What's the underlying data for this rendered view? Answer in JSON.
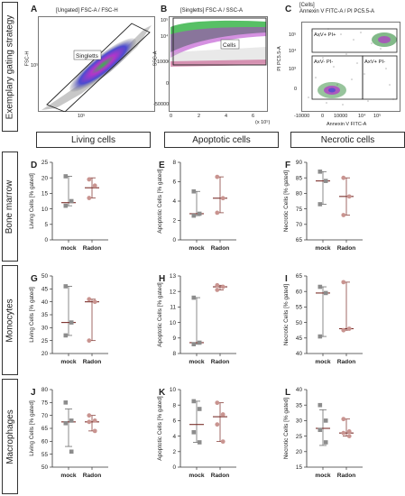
{
  "section_labels": {
    "gating": "Exemplary gating strategy",
    "bone_marrow": "Bone marrow",
    "monocytes": "Monocytes",
    "macrophages": "Macrophages"
  },
  "column_headers": {
    "living": "Living cells",
    "apoptotic": "Apoptotic cells",
    "necrotic": "Necrotic cells"
  },
  "flow_panels": {
    "A": {
      "letter": "A",
      "title": "[Ungated] FSC-A / FSC-H",
      "xlabel": "",
      "ylabel": "FSC-H",
      "gate": "Singletts",
      "xtick": "10⁵",
      "ytick": "10⁵"
    },
    "B": {
      "letter": "B",
      "title": "[Singletts] FSC-A / SSC-A",
      "ylabel": "SSC-A",
      "gate": "Cells",
      "xunit": "(x 10⁵)",
      "yticks": [
        "10⁵",
        "10⁴",
        "10000",
        "0",
        "-50000"
      ],
      "xticks": [
        "0",
        "2",
        "4",
        "6"
      ]
    },
    "C": {
      "letter": "C",
      "title_line1": "[Cells]",
      "title_line2": "Annexin V FITC-A / PI PC5.5-A",
      "ylabel": "PI PC5.5-A",
      "xlabel": "Annexin V FITC-A",
      "q_ur": "AxV+ PI+",
      "q_ll": "AxV- PI-",
      "q_lr": "AxV+ PI-",
      "yticks": [
        "10⁵",
        "10⁴",
        "10³",
        "0"
      ],
      "xticks": [
        "-10000",
        "0",
        "10000",
        "10⁴",
        "10⁵"
      ]
    }
  },
  "chart_data": [
    {
      "id": "D",
      "letter": "D",
      "type": "scatter",
      "ylabel": "Living Cells [% gated]",
      "categories": [
        "mock",
        "Radon"
      ],
      "ylim": [
        0,
        25
      ],
      "yticks": [
        0,
        5,
        10,
        15,
        20,
        25
      ],
      "series": [
        {
          "values": [
            [
              20.5,
              12.5,
              11.0
            ],
            [
              19.5,
              17.5,
              13.5
            ]
          ]
        }
      ],
      "summary": [
        [
          20.5,
          12.0,
          11.0
        ],
        [
          20.0,
          16.8,
          13.5
        ]
      ]
    },
    {
      "id": "E",
      "letter": "E",
      "type": "scatter",
      "ylabel": "Apoptotic Cells [% gated]",
      "categories": [
        "mock",
        "Radon"
      ],
      "ylim": [
        0,
        8
      ],
      "yticks": [
        0,
        2,
        4,
        6,
        8
      ],
      "series": [
        {
          "values": [
            [
              5.0,
              2.7,
              2.5
            ],
            [
              6.5,
              4.3,
              2.8
            ]
          ]
        }
      ],
      "summary": [
        [
          5.0,
          2.7,
          2.5
        ],
        [
          6.5,
          4.3,
          2.8
        ]
      ]
    },
    {
      "id": "F",
      "letter": "F",
      "type": "scatter",
      "ylabel": "Necrotic Cells [% gated]",
      "categories": [
        "mock",
        "Radon"
      ],
      "ylim": [
        65,
        90
      ],
      "yticks": [
        65,
        70,
        75,
        80,
        85,
        90
      ],
      "series": [
        {
          "values": [
            [
              87.0,
              84.0,
              76.5
            ],
            [
              85.0,
              79.0,
              73.0
            ]
          ]
        }
      ],
      "summary": [
        [
          87.0,
          84.0,
          76.5
        ],
        [
          85.0,
          79.0,
          73.0
        ]
      ]
    },
    {
      "id": "G",
      "letter": "G",
      "type": "scatter",
      "ylabel": "Living Cells [% gated]",
      "categories": [
        "mock",
        "Radon"
      ],
      "ylim": [
        20,
        50
      ],
      "yticks": [
        20,
        25,
        30,
        35,
        40,
        45,
        50
      ],
      "series": [
        {
          "values": [
            [
              46.0,
              32.0,
              27.0
            ],
            [
              41.0,
              40.0,
              25.0
            ]
          ]
        }
      ],
      "summary": [
        [
          46.0,
          32.0,
          27.0
        ],
        [
          41.0,
          40.0,
          25.0
        ]
      ]
    },
    {
      "id": "H",
      "letter": "H",
      "type": "scatter",
      "ylabel": "Apoptotic Cells [% gated]",
      "categories": [
        "mock",
        "Radon"
      ],
      "ylim": [
        8,
        13
      ],
      "yticks": [
        8,
        9,
        10,
        11,
        12,
        13
      ],
      "series": [
        {
          "values": [
            [
              11.6,
              8.7,
              8.6
            ],
            [
              12.4,
              12.3,
              12.1
            ]
          ]
        }
      ],
      "summary": [
        [
          11.6,
          8.7,
          8.6
        ],
        [
          12.4,
          12.3,
          12.1
        ]
      ]
    },
    {
      "id": "I",
      "letter": "I",
      "type": "scatter",
      "ylabel": "Necrotic Cells [% gated]",
      "categories": [
        "mock",
        "Radon"
      ],
      "ylim": [
        40,
        65
      ],
      "yticks": [
        40,
        45,
        50,
        55,
        60,
        65
      ],
      "series": [
        {
          "values": [
            [
              61.5,
              59.5,
              45.5
            ],
            [
              63.0,
              48.0,
              47.5
            ]
          ]
        }
      ],
      "summary": [
        [
          61.5,
          59.5,
          45.5
        ],
        [
          63.0,
          48.0,
          47.5
        ]
      ]
    },
    {
      "id": "J",
      "letter": "J",
      "type": "scatter",
      "ylabel": "Living Cells [% gated]",
      "categories": [
        "mock",
        "Radon"
      ],
      "ylim": [
        50,
        80
      ],
      "yticks": [
        50,
        55,
        60,
        65,
        70,
        75,
        80
      ],
      "series": [
        {
          "values": [
            [
              75.0,
              68.0,
              67.0,
              56.0
            ],
            [
              70.0,
              68.0,
              67.5,
              64.0
            ]
          ]
        }
      ],
      "summary": [
        [
          72.5,
          67.5,
          58.0
        ],
        [
          70.0,
          67.5,
          64.0
        ]
      ]
    },
    {
      "id": "K",
      "letter": "K",
      "type": "scatter",
      "ylabel": "Apoptotic Cells [% gated]",
      "categories": [
        "mock",
        "Radon"
      ],
      "ylim": [
        0,
        10
      ],
      "yticks": [
        0,
        2,
        4,
        6,
        8,
        10
      ],
      "series": [
        {
          "values": [
            [
              8.5,
              7.5,
              4.5,
              3.2
            ],
            [
              8.3,
              6.8,
              5.5,
              3.3
            ]
          ]
        }
      ],
      "summary": [
        [
          8.5,
          5.5,
          3.2
        ],
        [
          8.3,
          6.5,
          3.3
        ]
      ]
    },
    {
      "id": "L",
      "letter": "L",
      "type": "scatter",
      "ylabel": "Necrotic Cells [% gated]",
      "categories": [
        "mock",
        "Radon"
      ],
      "ylim": [
        15,
        40
      ],
      "yticks": [
        15,
        20,
        25,
        30,
        35,
        40
      ],
      "series": [
        {
          "values": [
            [
              35.0,
              30.0,
              27.0,
              23.0
            ],
            [
              30.5,
              26.5,
              26.0,
              25.0
            ]
          ]
        }
      ],
      "summary": [
        [
          33.5,
          27.5,
          22.0
        ],
        [
          30.5,
          26.0,
          25.0
        ]
      ]
    }
  ],
  "colors": {
    "mock_marker": "#8c8c8c",
    "radon_marker": "#c99490",
    "mock_line": "#6e6e6e",
    "radon_line": "#8a4540",
    "median": "#7a2e2a"
  }
}
